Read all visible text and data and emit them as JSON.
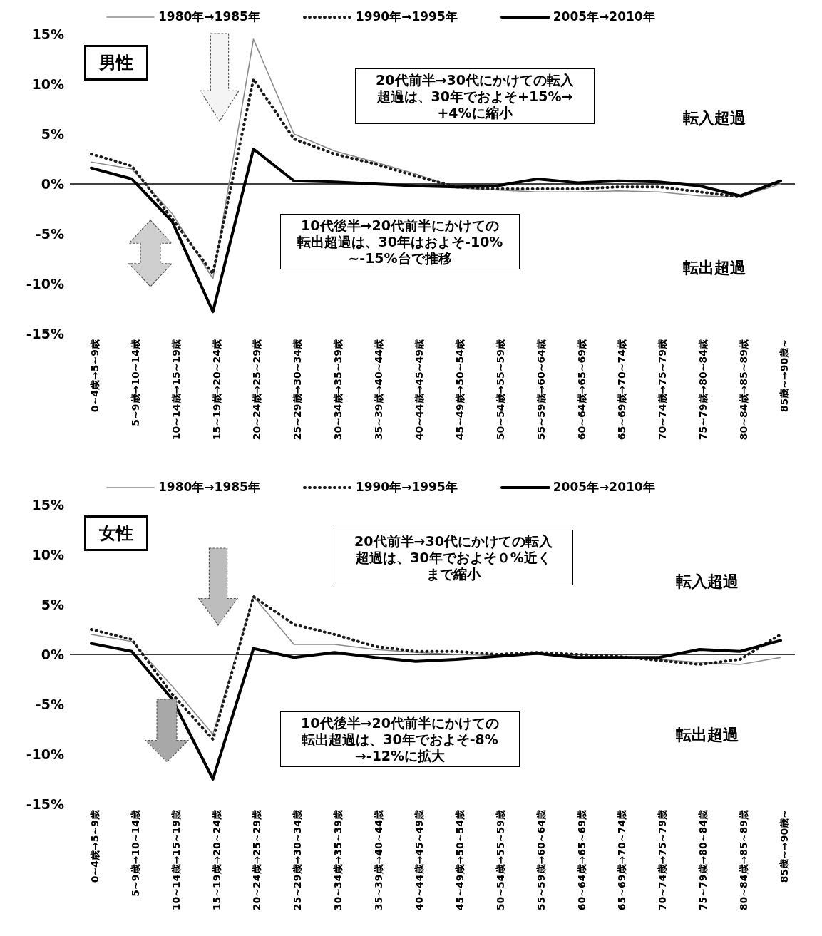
{
  "chart_data": [
    {
      "type": "line",
      "title": "男性",
      "categories": [
        "0~4歳→5~9歳",
        "5~9歳→10~14歳",
        "10~14歳→15~19歳",
        "15~19歳→20~24歳",
        "20~24歳→25~29歳",
        "25~29歳→30~34歳",
        "30~34歳→35~39歳",
        "35~39歳→40~44歳",
        "40~44歳→45~49歳",
        "45~49歳→50~54歳",
        "50~54歳→55~59歳",
        "55~59歳→60~64歳",
        "60~64歳→65~69歳",
        "65~69歳→70~74歳",
        "70~74歳→75~79歳",
        "75~79歳→80~84歳",
        "80~84歳→85~89歳",
        "85歳~→90歳~"
      ],
      "series": [
        {
          "name": "1980年→1985年",
          "color": "#8c8c8c",
          "line_style": "solid",
          "values": [
            2.2,
            1.5,
            -3,
            -9.5,
            14.5,
            5,
            3.3,
            2.2,
            1,
            -0.4,
            -0.6,
            -0.8,
            -0.8,
            -0.7,
            -0.8,
            -1.2,
            -1.3,
            0
          ]
        },
        {
          "name": "1990年→1995年",
          "color": "#1a1a1a",
          "line_style": "dotted",
          "values": [
            3,
            1.8,
            -3.5,
            -9,
            10.5,
            4.5,
            3,
            2,
            0.8,
            -0.3,
            -0.5,
            -0.5,
            -0.5,
            -0.3,
            -0.3,
            -0.8,
            -1.3,
            0.3
          ]
        },
        {
          "name": "2005年→2010年",
          "color": "#000000",
          "line_style": "solid",
          "values": [
            1.6,
            0.5,
            -3.8,
            -12.8,
            3.5,
            0.3,
            0.2,
            0,
            -0.2,
            -0.3,
            -0.2,
            0.5,
            0.1,
            0.3,
            0.2,
            -0.2,
            -1.2,
            0.3
          ]
        }
      ],
      "ylim": [
        -15,
        15
      ],
      "yticks": [
        {
          "value": -15,
          "label": "-15%"
        },
        {
          "value": -10,
          "label": "-10%"
        },
        {
          "value": -5,
          "label": "-5%"
        },
        {
          "value": 0,
          "label": "0%"
        },
        {
          "value": 5,
          "label": "5%"
        },
        {
          "value": 10,
          "label": "10%"
        },
        {
          "value": 15,
          "label": "15%"
        }
      ],
      "ref_lines": [
        {
          "axis": "y",
          "value": 0,
          "color": "#000000"
        }
      ],
      "annotations": [
        "20代前半→30代にかけての転入超過は、30年でおよそ+15%→+4%に縮小",
        "転入超過",
        "10代後半→20代前半にかけての転出超過は、30年はおよそ-10%~-15%台で推移",
        "転出超過"
      ],
      "legend": "top",
      "marker": "none",
      "grid": false
    },
    {
      "type": "line",
      "title": "女性",
      "categories": [
        "0~4歳→5~9歳",
        "5~9歳→10~14歳",
        "10~14歳→15~19歳",
        "15~19歳→20~24歳",
        "20~24歳→25~29歳",
        "25~29歳→30~34歳",
        "30~34歳→35~39歳",
        "35~39歳→40~44歳",
        "40~44歳→45~49歳",
        "45~49歳→50~54歳",
        "50~54歳→55~59歳",
        "55~59歳→60~64歳",
        "60~64歳→65~69歳",
        "65~69歳→70~74歳",
        "70~74歳→75~79歳",
        "75~79歳→80~84歳",
        "80~84歳→85~89歳",
        "85歳~→90歳~"
      ],
      "series": [
        {
          "name": "1980年→1985年",
          "color": "#8c8c8c",
          "line_style": "solid",
          "values": [
            2,
            1.3,
            -3.2,
            -8,
            5.8,
            1,
            1,
            0.5,
            0.2,
            0,
            -0.1,
            0,
            -0.2,
            -0.3,
            -0.5,
            -0.8,
            -1,
            -0.3
          ]
        },
        {
          "name": "1990年→1995年",
          "color": "#1a1a1a",
          "line_style": "dotted",
          "values": [
            2.5,
            1.5,
            -4,
            -8.5,
            5.8,
            3,
            2,
            0.8,
            0.3,
            0.3,
            0,
            0.2,
            0,
            -0.2,
            -0.6,
            -1,
            -0.5,
            2
          ]
        },
        {
          "name": "2005年→2010年",
          "color": "#000000",
          "line_style": "solid",
          "values": [
            1.1,
            0.3,
            -4.5,
            -12.5,
            0.6,
            -0.3,
            0.2,
            -0.3,
            -0.7,
            -0.5,
            -0.2,
            0.1,
            -0.3,
            -0.3,
            -0.3,
            0.5,
            0.3,
            1.4
          ]
        }
      ],
      "ylim": [
        -15,
        15
      ],
      "yticks": [
        {
          "value": -15,
          "label": "-15%"
        },
        {
          "value": -10,
          "label": "-10%"
        },
        {
          "value": -5,
          "label": "-5%"
        },
        {
          "value": 0,
          "label": "0%"
        },
        {
          "value": 5,
          "label": "5%"
        },
        {
          "value": 10,
          "label": "10%"
        },
        {
          "value": 15,
          "label": "15%"
        }
      ],
      "ref_lines": [
        {
          "axis": "y",
          "value": 0,
          "color": "#000000"
        }
      ],
      "annotations": [
        "20代前半→30代にかけての転入超過は、30年でおよそ０%近くまで縮小",
        "転入超過",
        "10代後半→20代前半にかけての転出超過は、30年でおよそ-8%→-12%に拡大",
        "転出超過"
      ],
      "legend": "top",
      "marker": "none",
      "grid": false
    }
  ]
}
